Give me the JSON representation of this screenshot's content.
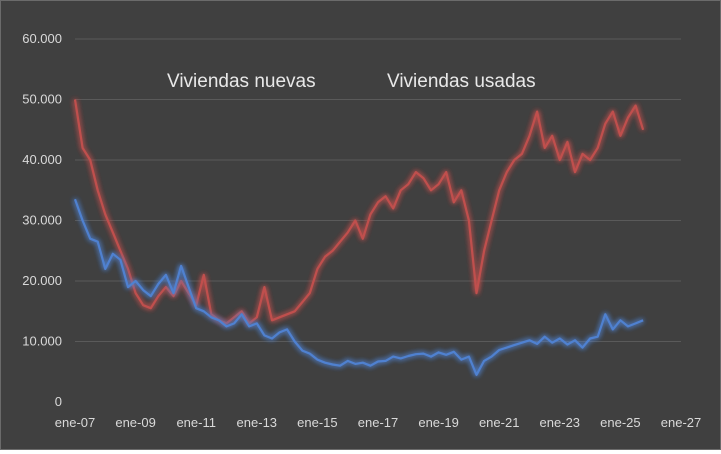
{
  "chart_data": {
    "type": "line",
    "title": "",
    "xlabel": "",
    "ylabel": "",
    "ylim": [
      0,
      60000
    ],
    "yticks": [
      "0",
      "10.000",
      "20.000",
      "30.000",
      "40.000",
      "50.000",
      "60.000"
    ],
    "xticks": [
      "ene-07",
      "ene-09",
      "ene-11",
      "ene-13",
      "ene-15",
      "ene-17",
      "ene-19",
      "ene-21",
      "ene-23",
      "ene-25",
      "ene-27"
    ],
    "x_start": "2007-01",
    "x_end": "2027-01",
    "grid": "horizontal",
    "legend_position": "top",
    "series": [
      {
        "name": "Viviendas nuevas",
        "color": "#4f81d0",
        "x": [
          "2007-01",
          "2007-04",
          "2007-07",
          "2007-10",
          "2008-01",
          "2008-04",
          "2008-07",
          "2008-10",
          "2009-01",
          "2009-04",
          "2009-07",
          "2009-10",
          "2010-01",
          "2010-04",
          "2010-07",
          "2010-10",
          "2011-01",
          "2011-04",
          "2011-07",
          "2011-10",
          "2012-01",
          "2012-04",
          "2012-07",
          "2012-10",
          "2013-01",
          "2013-04",
          "2013-07",
          "2013-10",
          "2014-01",
          "2014-04",
          "2014-07",
          "2014-10",
          "2015-01",
          "2015-04",
          "2015-07",
          "2015-10",
          "2016-01",
          "2016-04",
          "2016-07",
          "2016-10",
          "2017-01",
          "2017-04",
          "2017-07",
          "2017-10",
          "2018-01",
          "2018-04",
          "2018-07",
          "2018-10",
          "2019-01",
          "2019-04",
          "2019-07",
          "2019-10",
          "2020-01",
          "2020-04",
          "2020-07",
          "2020-10",
          "2021-01",
          "2021-04",
          "2021-07",
          "2021-10",
          "2022-01",
          "2022-04",
          "2022-07",
          "2022-10",
          "2023-01",
          "2023-04",
          "2023-07",
          "2023-10",
          "2024-01",
          "2024-04",
          "2024-07",
          "2024-10",
          "2025-01",
          "2025-04",
          "2025-07",
          "2025-10"
        ],
        "values": [
          33500,
          30000,
          27000,
          26500,
          22000,
          24500,
          23500,
          19000,
          20000,
          18500,
          17500,
          19500,
          21000,
          18000,
          22500,
          19000,
          15500,
          15000,
          14000,
          13500,
          12500,
          13000,
          14500,
          12500,
          13000,
          11000,
          10500,
          11500,
          12000,
          10000,
          8500,
          8000,
          7000,
          6500,
          6200,
          6000,
          6800,
          6300,
          6500,
          6000,
          6700,
          6800,
          7500,
          7200,
          7600,
          7900,
          8000,
          7500,
          8200,
          7800,
          8300,
          7000,
          7500,
          4500,
          6800,
          7500,
          8600,
          9000,
          9400,
          9800,
          10200,
          9600,
          10800,
          9800,
          10500,
          9500,
          10200,
          9000,
          10500,
          10800,
          14500,
          12000,
          13500,
          12500,
          13000,
          13500
        ]
      },
      {
        "name": "Viviendas usadas",
        "color": "#c0504d",
        "x": [
          "2007-01",
          "2007-04",
          "2007-07",
          "2007-10",
          "2008-01",
          "2008-04",
          "2008-07",
          "2008-10",
          "2009-01",
          "2009-04",
          "2009-07",
          "2009-10",
          "2010-01",
          "2010-04",
          "2010-07",
          "2010-10",
          "2011-01",
          "2011-04",
          "2011-07",
          "2011-10",
          "2012-01",
          "2012-04",
          "2012-07",
          "2012-10",
          "2013-01",
          "2013-04",
          "2013-07",
          "2013-10",
          "2014-01",
          "2014-04",
          "2014-07",
          "2014-10",
          "2015-01",
          "2015-04",
          "2015-07",
          "2015-10",
          "2016-01",
          "2016-04",
          "2016-07",
          "2016-10",
          "2017-01",
          "2017-04",
          "2017-07",
          "2017-10",
          "2018-01",
          "2018-04",
          "2018-07",
          "2018-10",
          "2019-01",
          "2019-04",
          "2019-07",
          "2019-10",
          "2020-01",
          "2020-04",
          "2020-07",
          "2020-10",
          "2021-01",
          "2021-04",
          "2021-07",
          "2021-10",
          "2022-01",
          "2022-04",
          "2022-07",
          "2022-10",
          "2023-01",
          "2023-04",
          "2023-07",
          "2023-10",
          "2024-01",
          "2024-04",
          "2024-07",
          "2024-10",
          "2025-01",
          "2025-04",
          "2025-07",
          "2025-10"
        ],
        "values": [
          50000,
          42000,
          40000,
          35000,
          31000,
          28000,
          25000,
          22000,
          18000,
          16000,
          15500,
          17500,
          19000,
          17500,
          20000,
          18000,
          16000,
          21000,
          14500,
          13500,
          13000,
          14000,
          15000,
          13000,
          14000,
          19000,
          13500,
          14000,
          14500,
          15000,
          16500,
          18000,
          22000,
          24000,
          25000,
          26500,
          28000,
          30000,
          27000,
          31000,
          33000,
          34000,
          32000,
          35000,
          36000,
          38000,
          37000,
          35000,
          36000,
          38000,
          33000,
          35000,
          30000,
          18000,
          25000,
          30000,
          35000,
          38000,
          40000,
          41000,
          44000,
          48000,
          42000,
          44000,
          40000,
          43000,
          38000,
          41000,
          40000,
          42000,
          46000,
          48000,
          44000,
          47000,
          49000,
          45000
        ]
      }
    ]
  }
}
